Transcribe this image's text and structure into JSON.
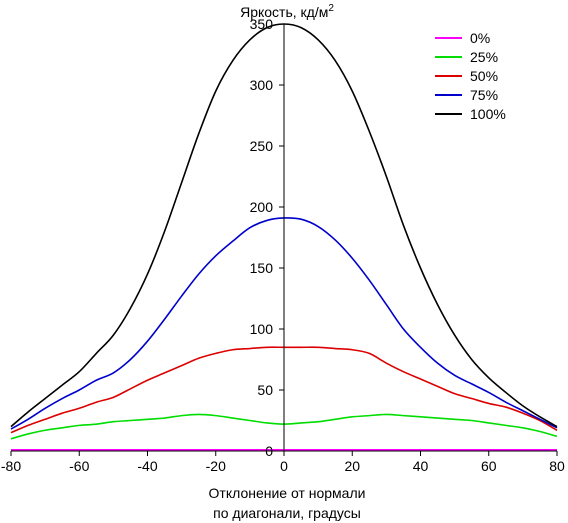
{
  "chart_data": {
    "type": "line",
    "title": "",
    "ylabel": "Яркость, кд/м",
    "ylabel_sup": "2",
    "xlabel_lines": [
      "Отклонение от нормали",
      "по диагонали, градусы"
    ],
    "xlim": [
      -80,
      80
    ],
    "ylim": [
      0,
      350
    ],
    "x_ticks": [
      -80,
      -60,
      -40,
      -20,
      0,
      20,
      40,
      60,
      80
    ],
    "y_ticks": [
      0,
      50,
      100,
      150,
      200,
      250,
      300,
      350
    ],
    "grid": false,
    "legend_position": "top-right",
    "x": [
      -80,
      -75,
      -70,
      -65,
      -60,
      -55,
      -50,
      -45,
      -40,
      -35,
      -30,
      -25,
      -20,
      -15,
      -10,
      -5,
      0,
      5,
      10,
      15,
      20,
      25,
      30,
      35,
      40,
      45,
      50,
      55,
      60,
      65,
      70,
      75,
      80
    ],
    "series": [
      {
        "name": "0%",
        "color": "#ff00ff",
        "values": [
          1,
          1,
          1,
          1,
          1,
          1,
          1,
          1,
          1,
          1,
          1,
          1,
          1,
          1,
          1,
          1,
          1,
          1,
          1,
          1,
          1,
          1,
          1,
          1,
          1,
          1,
          1,
          1,
          1,
          1,
          1,
          1,
          1
        ]
      },
      {
        "name": "25%",
        "color": "#00dd00",
        "values": [
          10,
          14,
          17,
          19,
          21,
          22,
          24,
          25,
          26,
          27,
          29,
          30,
          29,
          27,
          25,
          23,
          22,
          23,
          24,
          26,
          28,
          29,
          30,
          29,
          28,
          27,
          26,
          25,
          23,
          21,
          19,
          16,
          12
        ]
      },
      {
        "name": "50%",
        "color": "#dd0000",
        "values": [
          15,
          21,
          26,
          31,
          35,
          40,
          44,
          51,
          58,
          64,
          70,
          76,
          80,
          83,
          84,
          85,
          85,
          85,
          85,
          84,
          83,
          80,
          72,
          65,
          59,
          53,
          47,
          43,
          39,
          36,
          31,
          25,
          17
        ]
      },
      {
        "name": "75%",
        "color": "#0000cc",
        "values": [
          18,
          26,
          35,
          43,
          50,
          58,
          64,
          75,
          90,
          108,
          127,
          145,
          160,
          172,
          183,
          189,
          191,
          190,
          184,
          173,
          158,
          140,
          120,
          100,
          85,
          72,
          62,
          55,
          48,
          40,
          33,
          26,
          19
        ]
      },
      {
        "name": "100%",
        "color": "#000000",
        "values": [
          20,
          32,
          43,
          54,
          65,
          80,
          95,
          117,
          145,
          180,
          220,
          260,
          295,
          320,
          337,
          347,
          350,
          347,
          337,
          320,
          295,
          262,
          225,
          185,
          150,
          120,
          95,
          75,
          60,
          48,
          37,
          28,
          20
        ]
      }
    ]
  }
}
